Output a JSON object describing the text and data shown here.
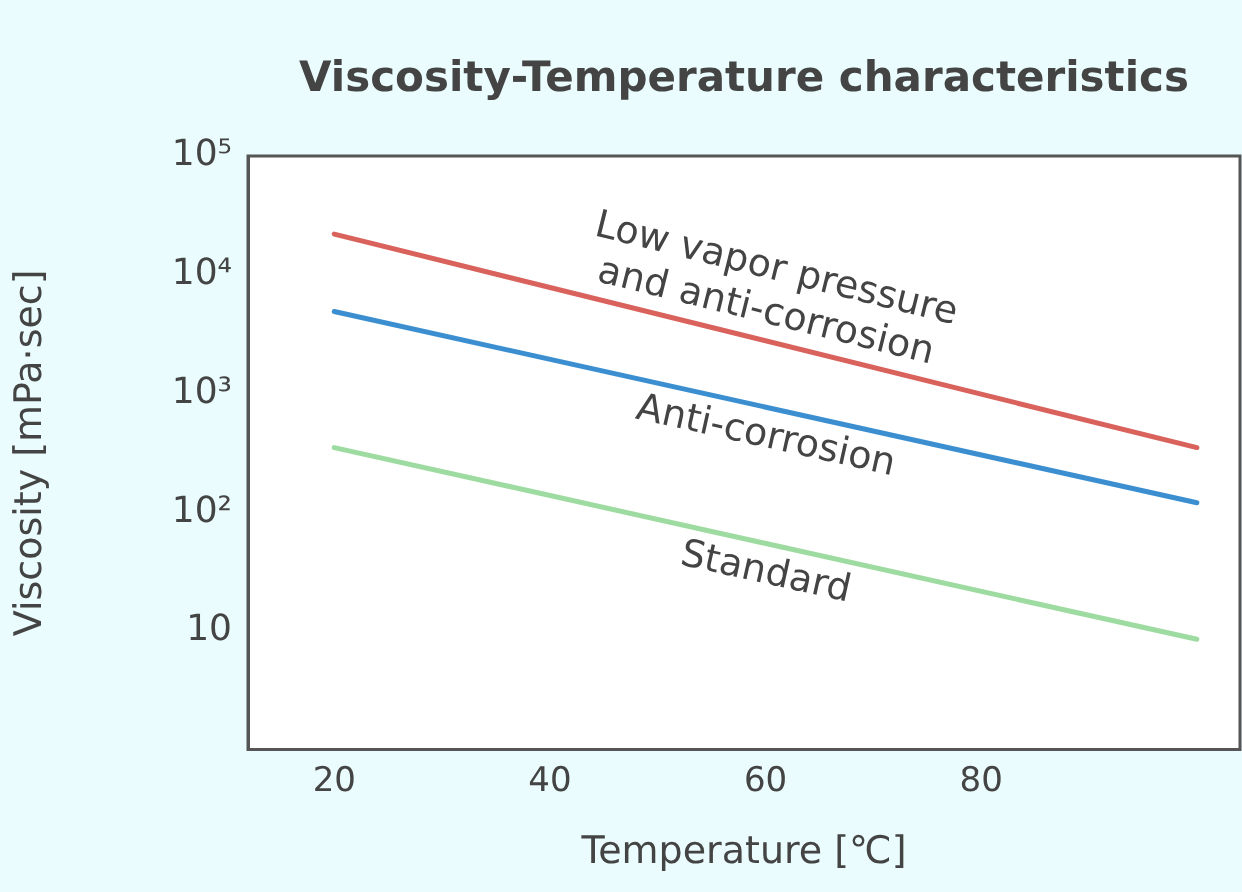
{
  "chart_data": {
    "type": "line",
    "title": "Viscosity-Temperature characteristics",
    "xlabel": "Temperature [℃]",
    "ylabel": "Viscosity [mPa·sec]",
    "x": [
      20,
      100
    ],
    "xlim": [
      12,
      104
    ],
    "xticks": [
      20,
      40,
      60,
      80
    ],
    "ylim": [
      1,
      100000
    ],
    "yticks": [
      {
        "value": 100000,
        "label": "10⁵"
      },
      {
        "value": 10000,
        "label": "10⁴"
      },
      {
        "value": 1000,
        "label": "10³"
      },
      {
        "value": 100,
        "label": "10²"
      },
      10
    ],
    "log": "y",
    "grid": false,
    "legend": false,
    "marker": "none",
    "line_style": "solid",
    "series": [
      {
        "name": "Low vapor pressure and anti-corrosion",
        "color": "#d9625c",
        "values": [
          22000,
          350
        ]
      },
      {
        "name": "Anti-corrosion",
        "color": "#3b8fd0",
        "values": [
          4900,
          120
        ]
      },
      {
        "name": "Standard",
        "color": "#9ddba0",
        "values": [
          350,
          8.5
        ]
      }
    ]
  }
}
